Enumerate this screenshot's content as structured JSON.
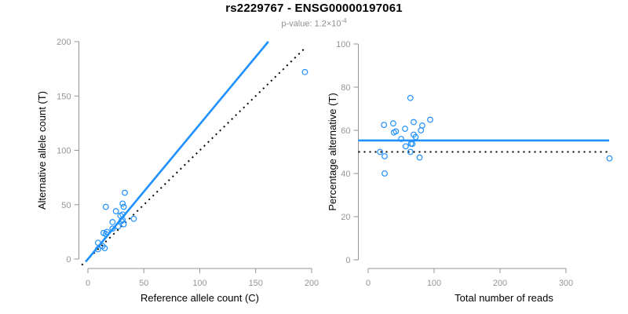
{
  "title": "rs2229767 - ENSG00000197061",
  "subtitle": {
    "label": "p-value: ",
    "value": "1.2×10",
    "exponent": "-4"
  },
  "colors": {
    "blue": "#1E90FF",
    "black": "#000000",
    "axis": "#969696",
    "tick_label": "#969696",
    "axis_title": "#000000",
    "background": "#ffffff"
  },
  "chart_data": [
    {
      "type": "scatter",
      "title": "",
      "xlabel": "Reference allele count (C)",
      "ylabel": "Alternative allele count (T)",
      "xlim": [
        0,
        200
      ],
      "ylim": [
        0,
        200
      ],
      "xticks": [
        0,
        50,
        100,
        150,
        200
      ],
      "yticks": [
        0,
        50,
        100,
        150,
        200
      ],
      "grid": false,
      "legend": null,
      "points": [
        [
          9,
          9
        ],
        [
          13,
          12
        ],
        [
          15,
          10
        ],
        [
          9,
          15
        ],
        [
          14,
          24
        ],
        [
          16,
          23
        ],
        [
          17,
          25
        ],
        [
          22,
          28
        ],
        [
          22,
          34
        ],
        [
          27,
          30
        ],
        [
          16,
          48
        ],
        [
          32,
          32
        ],
        [
          30,
          35
        ],
        [
          31,
          36
        ],
        [
          25,
          44
        ],
        [
          29,
          40
        ],
        [
          31,
          41
        ],
        [
          41,
          37
        ],
        [
          31,
          51
        ],
        [
          32,
          48
        ],
        [
          33,
          61
        ],
        [
          194,
          172
        ]
      ],
      "lines": [
        {
          "kind": "abline",
          "slope": 1,
          "intercept": 0,
          "color": "black",
          "dash": "dotted",
          "x_draw_range": [
            -5.5,
            194.5
          ],
          "name": "identity-line"
        },
        {
          "kind": "abline",
          "slope": 1.24,
          "intercept": 0,
          "color": "blue",
          "dash": null,
          "x_draw_range": [
            -2,
            161.3
          ],
          "name": "regression-line"
        }
      ]
    },
    {
      "type": "scatter",
      "title": "",
      "xlabel": "Total number of reads",
      "ylabel": "Percentage alternative (T)",
      "xlim": [
        0,
        366
      ],
      "ylim": [
        0,
        100
      ],
      "xticks": [
        0,
        100,
        200,
        300
      ],
      "yticks": [
        0,
        20,
        40,
        60,
        80,
        100
      ],
      "grid": false,
      "legend": null,
      "points": [
        [
          18,
          50
        ],
        [
          25,
          48
        ],
        [
          25,
          40
        ],
        [
          24,
          62.5
        ],
        [
          38,
          63.2
        ],
        [
          39,
          59
        ],
        [
          42,
          59.5
        ],
        [
          50,
          56
        ],
        [
          56,
          60.7
        ],
        [
          57,
          52.6
        ],
        [
          64,
          75
        ],
        [
          64,
          50
        ],
        [
          65,
          53.8
        ],
        [
          67,
          53.7
        ],
        [
          69,
          63.8
        ],
        [
          69,
          58
        ],
        [
          72,
          56.9
        ],
        [
          78,
          47.4
        ],
        [
          82,
          62.2
        ],
        [
          80,
          60
        ],
        [
          94,
          64.9
        ],
        [
          366,
          47
        ]
      ],
      "lines": [
        {
          "kind": "hline",
          "y": 50,
          "color": "black",
          "dash": "dotted",
          "name": "expected-fifty-percent-line"
        },
        {
          "kind": "hline",
          "y": 55.3,
          "color": "blue",
          "dash": null,
          "name": "mean-percentage-line"
        }
      ]
    }
  ]
}
